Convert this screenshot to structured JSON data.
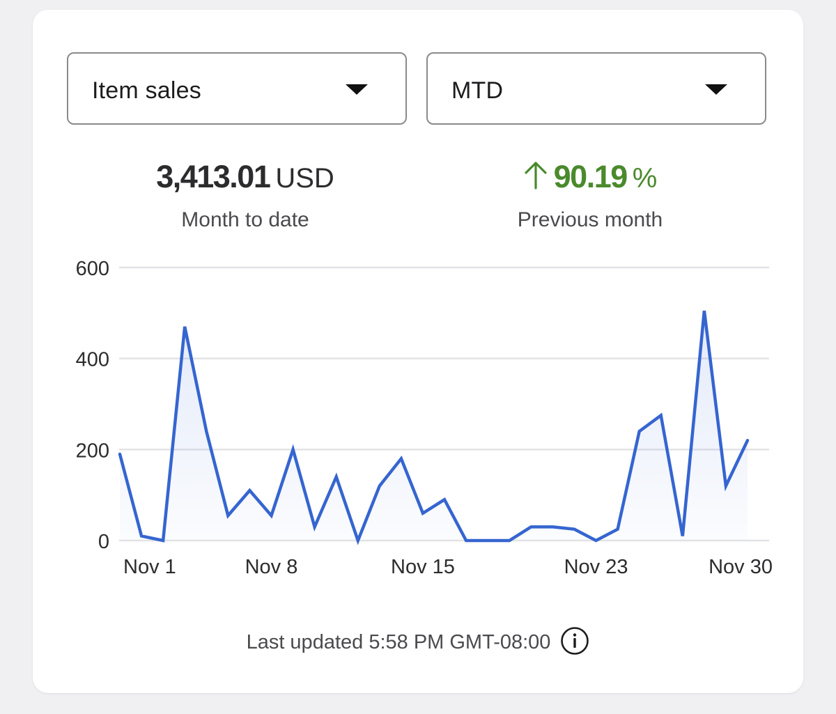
{
  "filters": {
    "metric": "Item sales",
    "period": "MTD"
  },
  "summary": {
    "amount_value": "3,413.01",
    "amount_unit": "USD",
    "amount_caption": "Month to date",
    "change_value": "90.19",
    "change_unit": "%",
    "change_direction": "up",
    "change_caption": "Previous month",
    "change_color": "#4a8a2c"
  },
  "chart_data": {
    "type": "area",
    "x": [
      "Nov 1",
      "Nov 2",
      "Nov 3",
      "Nov 4",
      "Nov 5",
      "Nov 6",
      "Nov 7",
      "Nov 8",
      "Nov 9",
      "Nov 10",
      "Nov 11",
      "Nov 12",
      "Nov 13",
      "Nov 14",
      "Nov 15",
      "Nov 16",
      "Nov 17",
      "Nov 18",
      "Nov 19",
      "Nov 20",
      "Nov 21",
      "Nov 22",
      "Nov 23",
      "Nov 24",
      "Nov 25",
      "Nov 26",
      "Nov 27",
      "Nov 28",
      "Nov 29",
      "Nov 30"
    ],
    "series": [
      {
        "values": [
          190,
          10,
          0,
          470,
          240,
          55,
          110,
          55,
          200,
          30,
          140,
          0,
          120,
          180,
          60,
          90,
          0,
          0,
          0,
          30,
          30,
          25,
          0,
          25,
          240,
          275,
          10,
          505,
          120,
          220
        ],
        "color": "#3565d0"
      }
    ],
    "x_tick_labels": [
      "Nov 1",
      "Nov 8",
      "Nov 15",
      "Nov 23",
      "Nov 30"
    ],
    "y_ticks": [
      0,
      200,
      400,
      600
    ],
    "ylim": [
      0,
      600
    ],
    "grid": true,
    "legend": "none"
  },
  "footer": {
    "last_updated": "Last updated 5:58 PM GMT-08:00",
    "info_icon": "info-icon"
  }
}
